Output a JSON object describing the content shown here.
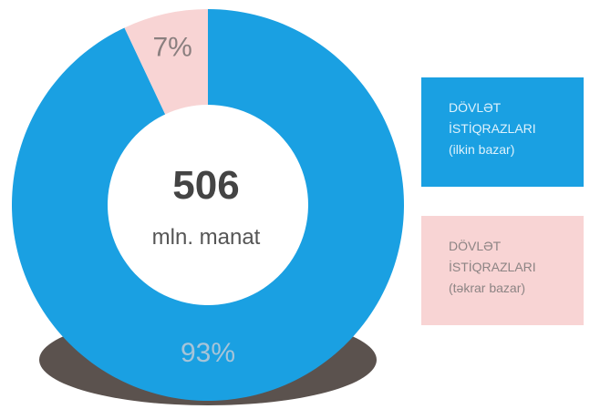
{
  "chart_data": {
    "type": "donut",
    "categories": [
      "DÖVLƏT İSTİQRAZLARI (ilkin bazar)",
      "DÖVLƏT İSTİQRAZLARI (təkrar bazar)"
    ],
    "values": [
      93,
      7
    ],
    "value_labels": [
      "93%",
      "7%"
    ],
    "colors": [
      "#1aa0e2",
      "#f8d4d4"
    ],
    "total": 506,
    "total_label": "mln. manat"
  }
}
